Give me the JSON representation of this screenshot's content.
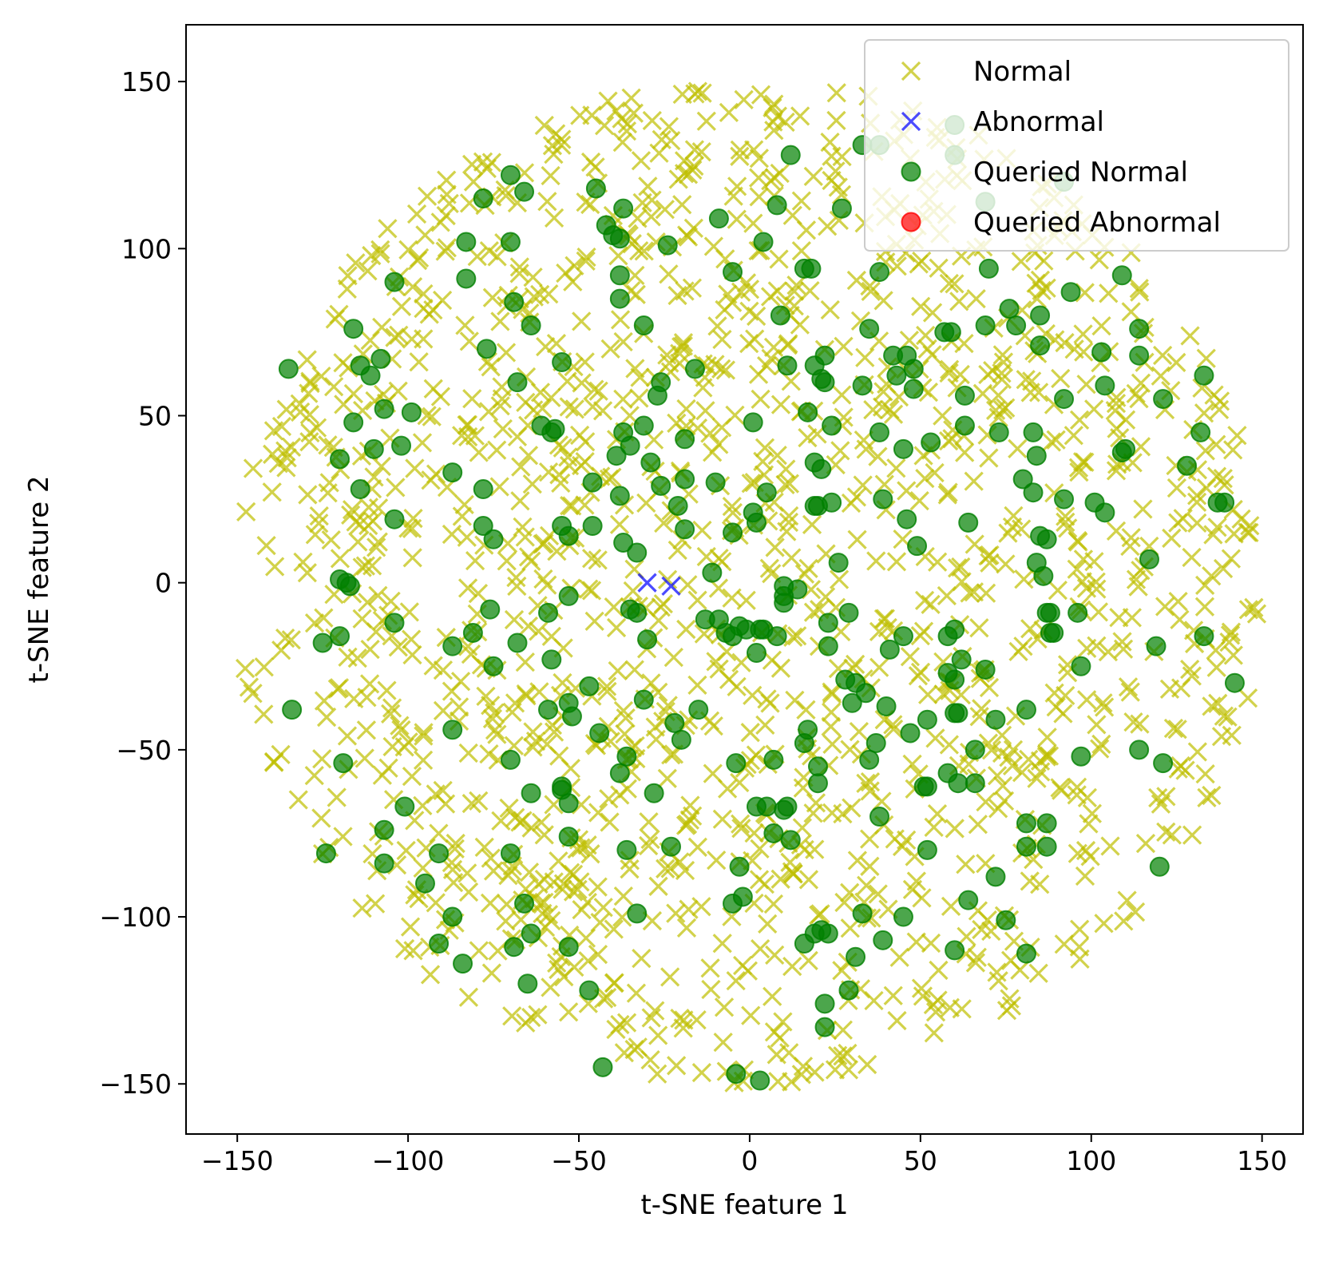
{
  "chart_data": {
    "type": "scatter",
    "title": "",
    "xlabel": "t-SNE feature 1",
    "ylabel": "t-SNE feature 2",
    "xlim": [
      -165,
      162
    ],
    "ylim": [
      -165,
      167
    ],
    "xticks": [
      -150,
      -100,
      -50,
      0,
      50,
      100,
      150
    ],
    "yticks": [
      -150,
      -100,
      -50,
      0,
      50,
      100,
      150
    ],
    "grid": false,
    "legend_position": "top-right",
    "series": [
      {
        "name": "Normal",
        "marker": "x",
        "color": "#bfbf00",
        "alpha": 0.7,
        "cloud": {
          "count": 1500,
          "center": [
            0,
            0
          ],
          "radius": 150
        }
      },
      {
        "name": "Abnormal",
        "marker": "x",
        "color": "#0000ff",
        "alpha": 0.7,
        "points": [
          [
            -30,
            0
          ],
          [
            -23,
            -1
          ]
        ]
      },
      {
        "name": "Queried Normal",
        "marker": "o",
        "color": "#008000",
        "alpha": 0.7,
        "points": [
          [
            -135,
            64
          ],
          [
            -116,
            76
          ],
          [
            -114,
            65
          ],
          [
            -111,
            62
          ],
          [
            -108,
            67
          ],
          [
            -104,
            90
          ],
          [
            -107,
            52
          ],
          [
            -99,
            51
          ],
          [
            -116,
            48
          ],
          [
            -110,
            40
          ],
          [
            -102,
            41
          ],
          [
            -120,
            37
          ],
          [
            -114,
            28
          ],
          [
            -104,
            19
          ],
          [
            -120,
            1
          ],
          [
            -118,
            0
          ],
          [
            -117,
            -1
          ],
          [
            -120,
            -16
          ],
          [
            -125,
            -18
          ],
          [
            -104,
            -12
          ],
          [
            -134,
            -38
          ],
          [
            -119,
            -54
          ],
          [
            -124,
            -81
          ],
          [
            -107,
            -74
          ],
          [
            -107,
            -84
          ],
          [
            -101,
            -67
          ],
          [
            -95,
            -90
          ],
          [
            -91,
            -81
          ],
          [
            -87,
            -100
          ],
          [
            -91,
            -108
          ],
          [
            -84,
            -114
          ],
          [
            -87,
            -44
          ],
          [
            -87,
            -19
          ],
          [
            -87,
            33
          ],
          [
            -83,
            102
          ],
          [
            -83,
            91
          ],
          [
            -78,
            115
          ],
          [
            -77,
            70
          ],
          [
            -78,
            28
          ],
          [
            -78,
            17
          ],
          [
            -75,
            13
          ],
          [
            -76,
            -8
          ],
          [
            -75,
            -25
          ],
          [
            -81,
            -15
          ],
          [
            -70,
            102
          ],
          [
            -70,
            122
          ],
          [
            -66,
            117
          ],
          [
            -69,
            84
          ],
          [
            -68,
            60
          ],
          [
            -64,
            77
          ],
          [
            -61,
            47
          ],
          [
            -58,
            45
          ],
          [
            -57,
            46
          ],
          [
            -55,
            66
          ],
          [
            -55,
            17
          ],
          [
            -53,
            14
          ],
          [
            -53,
            -4
          ],
          [
            -59,
            -9
          ],
          [
            -59,
            -38
          ],
          [
            -58,
            -23
          ],
          [
            -53,
            -36
          ],
          [
            -52,
            -40
          ],
          [
            -68,
            -18
          ],
          [
            -70,
            -53
          ],
          [
            -64,
            -63
          ],
          [
            -55,
            -61
          ],
          [
            -55,
            -62
          ],
          [
            -53,
            -66
          ],
          [
            -53,
            -76
          ],
          [
            -70,
            -81
          ],
          [
            -66,
            -96
          ],
          [
            -69,
            -109
          ],
          [
            -64,
            -105
          ],
          [
            -65,
            -120
          ],
          [
            -53,
            -109
          ],
          [
            -47,
            -122
          ],
          [
            -43,
            -145
          ],
          [
            -45,
            118
          ],
          [
            -37,
            112
          ],
          [
            -42,
            107
          ],
          [
            -40,
            104
          ],
          [
            -38,
            103
          ],
          [
            -38,
            92
          ],
          [
            -38,
            85
          ],
          [
            -37,
            45
          ],
          [
            -35,
            41
          ],
          [
            -31,
            47
          ],
          [
            -39,
            38
          ],
          [
            -38,
            26
          ],
          [
            -37,
            12
          ],
          [
            -33,
            9
          ],
          [
            -46,
            30
          ],
          [
            -46,
            17
          ],
          [
            -29,
            36
          ],
          [
            -27,
            56
          ],
          [
            -26,
            60
          ],
          [
            -31,
            77
          ],
          [
            -26,
            29
          ],
          [
            -24,
            101
          ],
          [
            -19,
            43
          ],
          [
            -19,
            31
          ],
          [
            -19,
            16
          ],
          [
            -21,
            23
          ],
          [
            -35,
            -8
          ],
          [
            -33,
            -9
          ],
          [
            -30,
            -17
          ],
          [
            -22,
            -42
          ],
          [
            -20,
            -47
          ],
          [
            -15,
            -38
          ],
          [
            -31,
            -35
          ],
          [
            -47,
            -31
          ],
          [
            -44,
            -45
          ],
          [
            -36,
            -52
          ],
          [
            -38,
            -57
          ],
          [
            -28,
            -63
          ],
          [
            -36,
            -80
          ],
          [
            -33,
            -99
          ],
          [
            -23,
            -79
          ],
          [
            -16,
            64
          ],
          [
            -9,
            109
          ],
          [
            -5,
            93
          ],
          [
            -10,
            30
          ],
          [
            -5,
            15
          ],
          [
            1,
            21
          ],
          [
            2,
            18
          ],
          [
            -13,
            -11
          ],
          [
            -9,
            -11
          ],
          [
            -11,
            3
          ],
          [
            -7,
            -15
          ],
          [
            -3,
            -13
          ],
          [
            -5,
            -16
          ],
          [
            -1,
            -14
          ],
          [
            3,
            -14
          ],
          [
            4,
            -14
          ],
          [
            2,
            -21
          ],
          [
            2,
            -67
          ],
          [
            5,
            -67
          ],
          [
            7,
            -75
          ],
          [
            11,
            -67
          ],
          [
            12,
            -77
          ],
          [
            -4,
            -54
          ],
          [
            -3,
            -85
          ],
          [
            -5,
            -96
          ],
          [
            -2,
            -94
          ],
          [
            -4,
            -147
          ],
          [
            3,
            -149
          ],
          [
            4,
            102
          ],
          [
            8,
            113
          ],
          [
            12,
            128
          ],
          [
            9,
            80
          ],
          [
            11,
            65
          ],
          [
            1,
            48
          ],
          [
            5,
            27
          ],
          [
            10,
            -4
          ],
          [
            10,
            -6
          ],
          [
            10,
            -1
          ],
          [
            14,
            -2
          ],
          [
            8,
            -16
          ],
          [
            10,
            -68
          ],
          [
            7,
            -53
          ],
          [
            16,
            -48
          ],
          [
            17,
            -44
          ],
          [
            17,
            51
          ],
          [
            19,
            36
          ],
          [
            21,
            34
          ],
          [
            19,
            65
          ],
          [
            21,
            61
          ],
          [
            22,
            68
          ],
          [
            22,
            60
          ],
          [
            24,
            47
          ],
          [
            20,
            23
          ],
          [
            24,
            24
          ],
          [
            19,
            23
          ],
          [
            26,
            6
          ],
          [
            16,
            94
          ],
          [
            18,
            94
          ],
          [
            27,
            112
          ],
          [
            23,
            -12
          ],
          [
            23,
            -19
          ],
          [
            29,
            -9
          ],
          [
            28,
            -29
          ],
          [
            31,
            -30
          ],
          [
            30,
            -36
          ],
          [
            34,
            -33
          ],
          [
            20,
            -55
          ],
          [
            20,
            -60
          ],
          [
            21,
            -104
          ],
          [
            19,
            -105
          ],
          [
            16,
            -108
          ],
          [
            23,
            -105
          ],
          [
            33,
            -99
          ],
          [
            31,
            -112
          ],
          [
            29,
            -122
          ],
          [
            22,
            -126
          ],
          [
            22,
            -133
          ],
          [
            33,
            131
          ],
          [
            38,
            131
          ],
          [
            33,
            59
          ],
          [
            35,
            76
          ],
          [
            38,
            45
          ],
          [
            38,
            93
          ],
          [
            39,
            25
          ],
          [
            37,
            -48
          ],
          [
            35,
            -53
          ],
          [
            38,
            -70
          ],
          [
            39,
            -107
          ],
          [
            42,
            68
          ],
          [
            43,
            62
          ],
          [
            45,
            40
          ],
          [
            46,
            68
          ],
          [
            48,
            64
          ],
          [
            48,
            58
          ],
          [
            46,
            19
          ],
          [
            49,
            11
          ],
          [
            47,
            -45
          ],
          [
            45,
            -100
          ],
          [
            52,
            -41
          ],
          [
            45,
            -16
          ],
          [
            40,
            -37
          ],
          [
            41,
            -20
          ],
          [
            53,
            42
          ],
          [
            51,
            -61
          ],
          [
            52,
            -61
          ],
          [
            52,
            -80
          ],
          [
            58,
            -16
          ],
          [
            60,
            -14
          ],
          [
            58,
            -27
          ],
          [
            60,
            -29
          ],
          [
            62,
            -23
          ],
          [
            60,
            -39
          ],
          [
            58,
            -57
          ],
          [
            61,
            -60
          ],
          [
            61,
            -39
          ],
          [
            57,
            75
          ],
          [
            59,
            75
          ],
          [
            63,
            47
          ],
          [
            63,
            56
          ],
          [
            64,
            18
          ],
          [
            66,
            -50
          ],
          [
            66,
            -60
          ],
          [
            64,
            -95
          ],
          [
            60,
            -110
          ],
          [
            60,
            137
          ],
          [
            60,
            128
          ],
          [
            69,
            114
          ],
          [
            70,
            94
          ],
          [
            69,
            77
          ],
          [
            72,
            -88
          ],
          [
            72,
            -41
          ],
          [
            69,
            -26
          ],
          [
            73,
            45
          ],
          [
            76,
            82
          ],
          [
            78,
            77
          ],
          [
            80,
            31
          ],
          [
            81,
            -38
          ],
          [
            81,
            -72
          ],
          [
            81,
            -79
          ],
          [
            81,
            -111
          ],
          [
            75,
            -101
          ],
          [
            83,
            27
          ],
          [
            83,
            45
          ],
          [
            84,
            38
          ],
          [
            85,
            80
          ],
          [
            85,
            71
          ],
          [
            85,
            14
          ],
          [
            87,
            13
          ],
          [
            84,
            6
          ],
          [
            86,
            2
          ],
          [
            87,
            -9
          ],
          [
            88,
            -9
          ],
          [
            88,
            -15
          ],
          [
            89,
            -15
          ],
          [
            87,
            -72
          ],
          [
            87,
            -79
          ],
          [
            92,
            55
          ],
          [
            92,
            25
          ],
          [
            92,
            120
          ],
          [
            96,
            -9
          ],
          [
            94,
            87
          ],
          [
            97,
            -25
          ],
          [
            97,
            -52
          ],
          [
            101,
            24
          ],
          [
            103,
            69
          ],
          [
            104,
            59
          ],
          [
            104,
            21
          ],
          [
            109,
            92
          ],
          [
            109,
            39
          ],
          [
            110,
            40
          ],
          [
            114,
            76
          ],
          [
            114,
            68
          ],
          [
            114,
            -50
          ],
          [
            117,
            7
          ],
          [
            119,
            -19
          ],
          [
            120,
            -85
          ],
          [
            121,
            55
          ],
          [
            121,
            -54
          ],
          [
            128,
            35
          ],
          [
            132,
            45
          ],
          [
            133,
            62
          ],
          [
            133,
            -16
          ],
          [
            137,
            24
          ],
          [
            139,
            24
          ],
          [
            142,
            -30
          ]
        ]
      },
      {
        "name": "Queried Abnormal",
        "marker": "o",
        "color": "#ff0000",
        "alpha": 0.7,
        "points": []
      }
    ]
  }
}
